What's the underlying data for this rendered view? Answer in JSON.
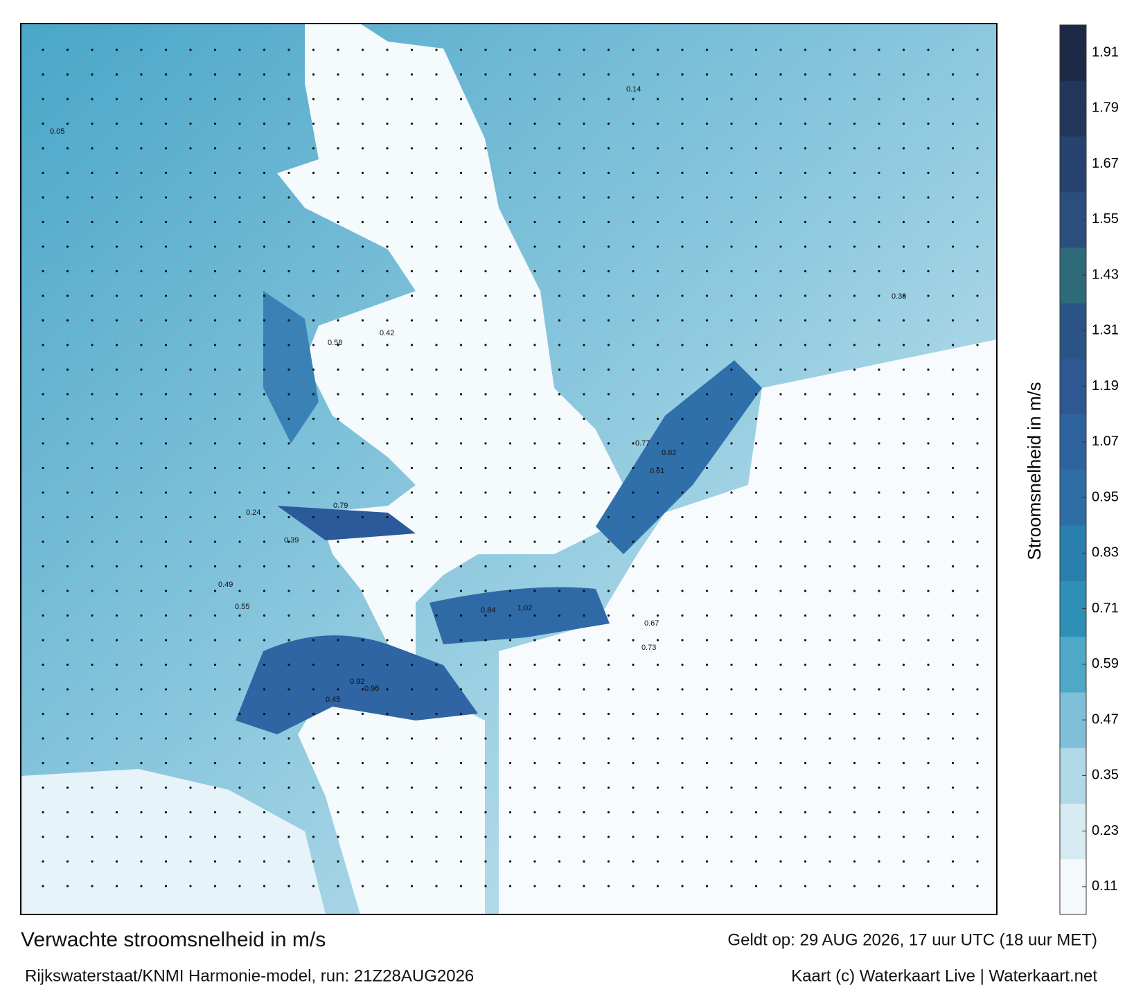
{
  "title": "Verwachte stroomsnelheid in m/s",
  "subtitle": "Rijkswaterstaat/KNMI Harmonie-model, run: 21Z28AUG2026",
  "valid_time": "Geldt op: 29 AUG 2026, 17 uur UTC (18 uur MET)",
  "credit": "Kaart (c) Waterkaart Live | Waterkaart.net",
  "colorbar": {
    "label": "Stroomsnelheid in m/s",
    "lim": [
      0.05,
      1.97
    ],
    "ticks": [
      0.11,
      0.23,
      0.35,
      0.47,
      0.59,
      0.71,
      0.83,
      0.95,
      1.07,
      1.19,
      1.31,
      1.43,
      1.55,
      1.67,
      1.79,
      1.91
    ],
    "colors": [
      "#f4f9fb",
      "#d6ebf2",
      "#b0d8e6",
      "#7fc0d8",
      "#4ea9c9",
      "#2e90b6",
      "#2a7fae",
      "#2e6ea5",
      "#2f63a0",
      "#2d5894",
      "#2b5486",
      "#2f6a78",
      "#2a4f7c",
      "#27436f",
      "#23365c",
      "#1c2a47"
    ]
  },
  "map_labels": [
    0.92,
    0.96,
    0.84,
    1.02,
    0.79,
    0.61,
    0.82,
    0.77,
    0.55,
    0.49,
    0.42,
    0.58,
    0.33,
    0.14,
    0.05,
    0.73,
    0.67,
    0.45,
    0.39,
    0.24
  ]
}
